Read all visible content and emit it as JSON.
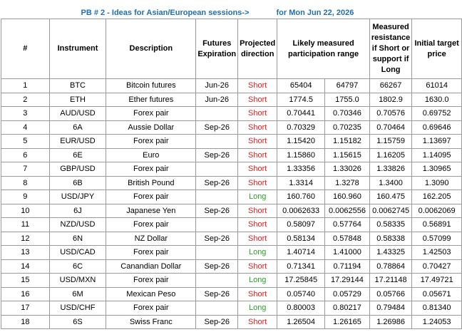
{
  "title": {
    "left": "PB # 2 - Ideas for Asian/European sessions->",
    "right": "for Mon Jun 22, 2026"
  },
  "headers": {
    "num": "#",
    "instrument": "Instrument",
    "description": "Description",
    "expiration": "Futures Expiration",
    "direction": "Projected direction",
    "range": "Likely measured participation range",
    "resistance": "Measured resistance if Short or support if Long",
    "target": "Initial target price"
  },
  "colors": {
    "title": "#1f6fb5",
    "short": "#e0201f",
    "long": "#2ca02c",
    "grid": "#9a9a9a"
  },
  "rows": [
    {
      "num": "1",
      "instrument": "BTC",
      "description": "Bitcoin futures",
      "expiration": "Jun-26",
      "direction": "Short",
      "range_a": "65404",
      "range_b": "64797",
      "level": "66267",
      "target": "61014"
    },
    {
      "num": "2",
      "instrument": "ETH",
      "description": "Ether futures",
      "expiration": "Jun-26",
      "direction": "Short",
      "range_a": "1774.5",
      "range_b": "1755.0",
      "level": "1802.9",
      "target": "1630.0"
    },
    {
      "num": "3",
      "instrument": "AUD/USD",
      "description": "Forex pair",
      "expiration": "",
      "direction": "Short",
      "range_a": "0.70441",
      "range_b": "0.70346",
      "level": "0.70576",
      "target": "0.69752"
    },
    {
      "num": "4",
      "instrument": "6A",
      "description": "Aussie Dollar",
      "expiration": "Sep-26",
      "direction": "Short",
      "range_a": "0.70329",
      "range_b": "0.70235",
      "level": "0.70464",
      "target": "0.69646"
    },
    {
      "num": "5",
      "instrument": "EUR/USD",
      "description": "Forex pair",
      "expiration": "",
      "direction": "Short",
      "range_a": "1.15420",
      "range_b": "1.15182",
      "level": "1.15759",
      "target": "1.13697"
    },
    {
      "num": "6",
      "instrument": "6E",
      "description": "Euro",
      "expiration": "Sep-26",
      "direction": "Short",
      "range_a": "1.15860",
      "range_b": "1.15615",
      "level": "1.16205",
      "target": "1.14095"
    },
    {
      "num": "7",
      "instrument": "GBP/USD",
      "description": "Forex pair",
      "expiration": "",
      "direction": "Short",
      "range_a": "1.33356",
      "range_b": "1.33026",
      "level": "1.33826",
      "target": "1.30965"
    },
    {
      "num": "8",
      "instrument": "6B",
      "description": "British Pound",
      "expiration": "Sep-26",
      "direction": "Short",
      "range_a": "1.3314",
      "range_b": "1.3278",
      "level": "1.3400",
      "target": "1.3090"
    },
    {
      "num": "9",
      "instrument": "USD/JPY",
      "description": "Forex pair",
      "expiration": "",
      "direction": "Long",
      "range_a": "160.760",
      "range_b": "160.960",
      "level": "160.475",
      "target": "162.205"
    },
    {
      "num": "10",
      "instrument": "6J",
      "description": "Japanese Yen",
      "expiration": "Sep-26",
      "direction": "Short",
      "range_a": "0.0062633",
      "range_b": "0.0062556",
      "level": "0.0062745",
      "target": "0.0062069"
    },
    {
      "num": "11",
      "instrument": "NZD/USD",
      "description": "Forex pair",
      "expiration": "",
      "direction": "Short",
      "range_a": "0.58097",
      "range_b": "0.57764",
      "level": "0.58335",
      "target": "0.56891"
    },
    {
      "num": "12",
      "instrument": "6N",
      "description": "NZ Dollar",
      "expiration": "Sep-26",
      "direction": "Short",
      "range_a": "0.58134",
      "range_b": "0.57848",
      "level": "0.58338",
      "target": "0.57099"
    },
    {
      "num": "13",
      "instrument": "USD/CAD",
      "description": "Forex pair",
      "expiration": "",
      "direction": "Long",
      "range_a": "1.40714",
      "range_b": "1.41000",
      "level": "1.43325",
      "target": "1.42503"
    },
    {
      "num": "14",
      "instrument": "6C",
      "description": "Canandian Dollar",
      "expiration": "Sep-26",
      "direction": "Short",
      "range_a": "0.71341",
      "range_b": "0.71194",
      "level": "0.78864",
      "target": "0.70427"
    },
    {
      "num": "15",
      "instrument": "USD/MXN",
      "description": "Forex pair",
      "expiration": "",
      "direction": "Long",
      "range_a": "17.25845",
      "range_b": "17.29144",
      "level": "17.21148",
      "target": "17.49721"
    },
    {
      "num": "16",
      "instrument": "6M",
      "description": "Mexican Peso",
      "expiration": "Sep-26",
      "direction": "Short",
      "range_a": "0.05740",
      "range_b": "0.05729",
      "level": "0.05766",
      "target": "0.05671"
    },
    {
      "num": "17",
      "instrument": "USD/CHF",
      "description": "Forex pair",
      "expiration": "",
      "direction": "Long",
      "range_a": "0.80003",
      "range_b": "0.80217",
      "level": "0.79484",
      "target": "0.81340"
    },
    {
      "num": "18",
      "instrument": "6S",
      "description": "Swiss Franc",
      "expiration": "Sep-26",
      "direction": "Short",
      "range_a": "1.26504",
      "range_b": "1.26165",
      "level": "1.26986",
      "target": "1.24053"
    }
  ]
}
